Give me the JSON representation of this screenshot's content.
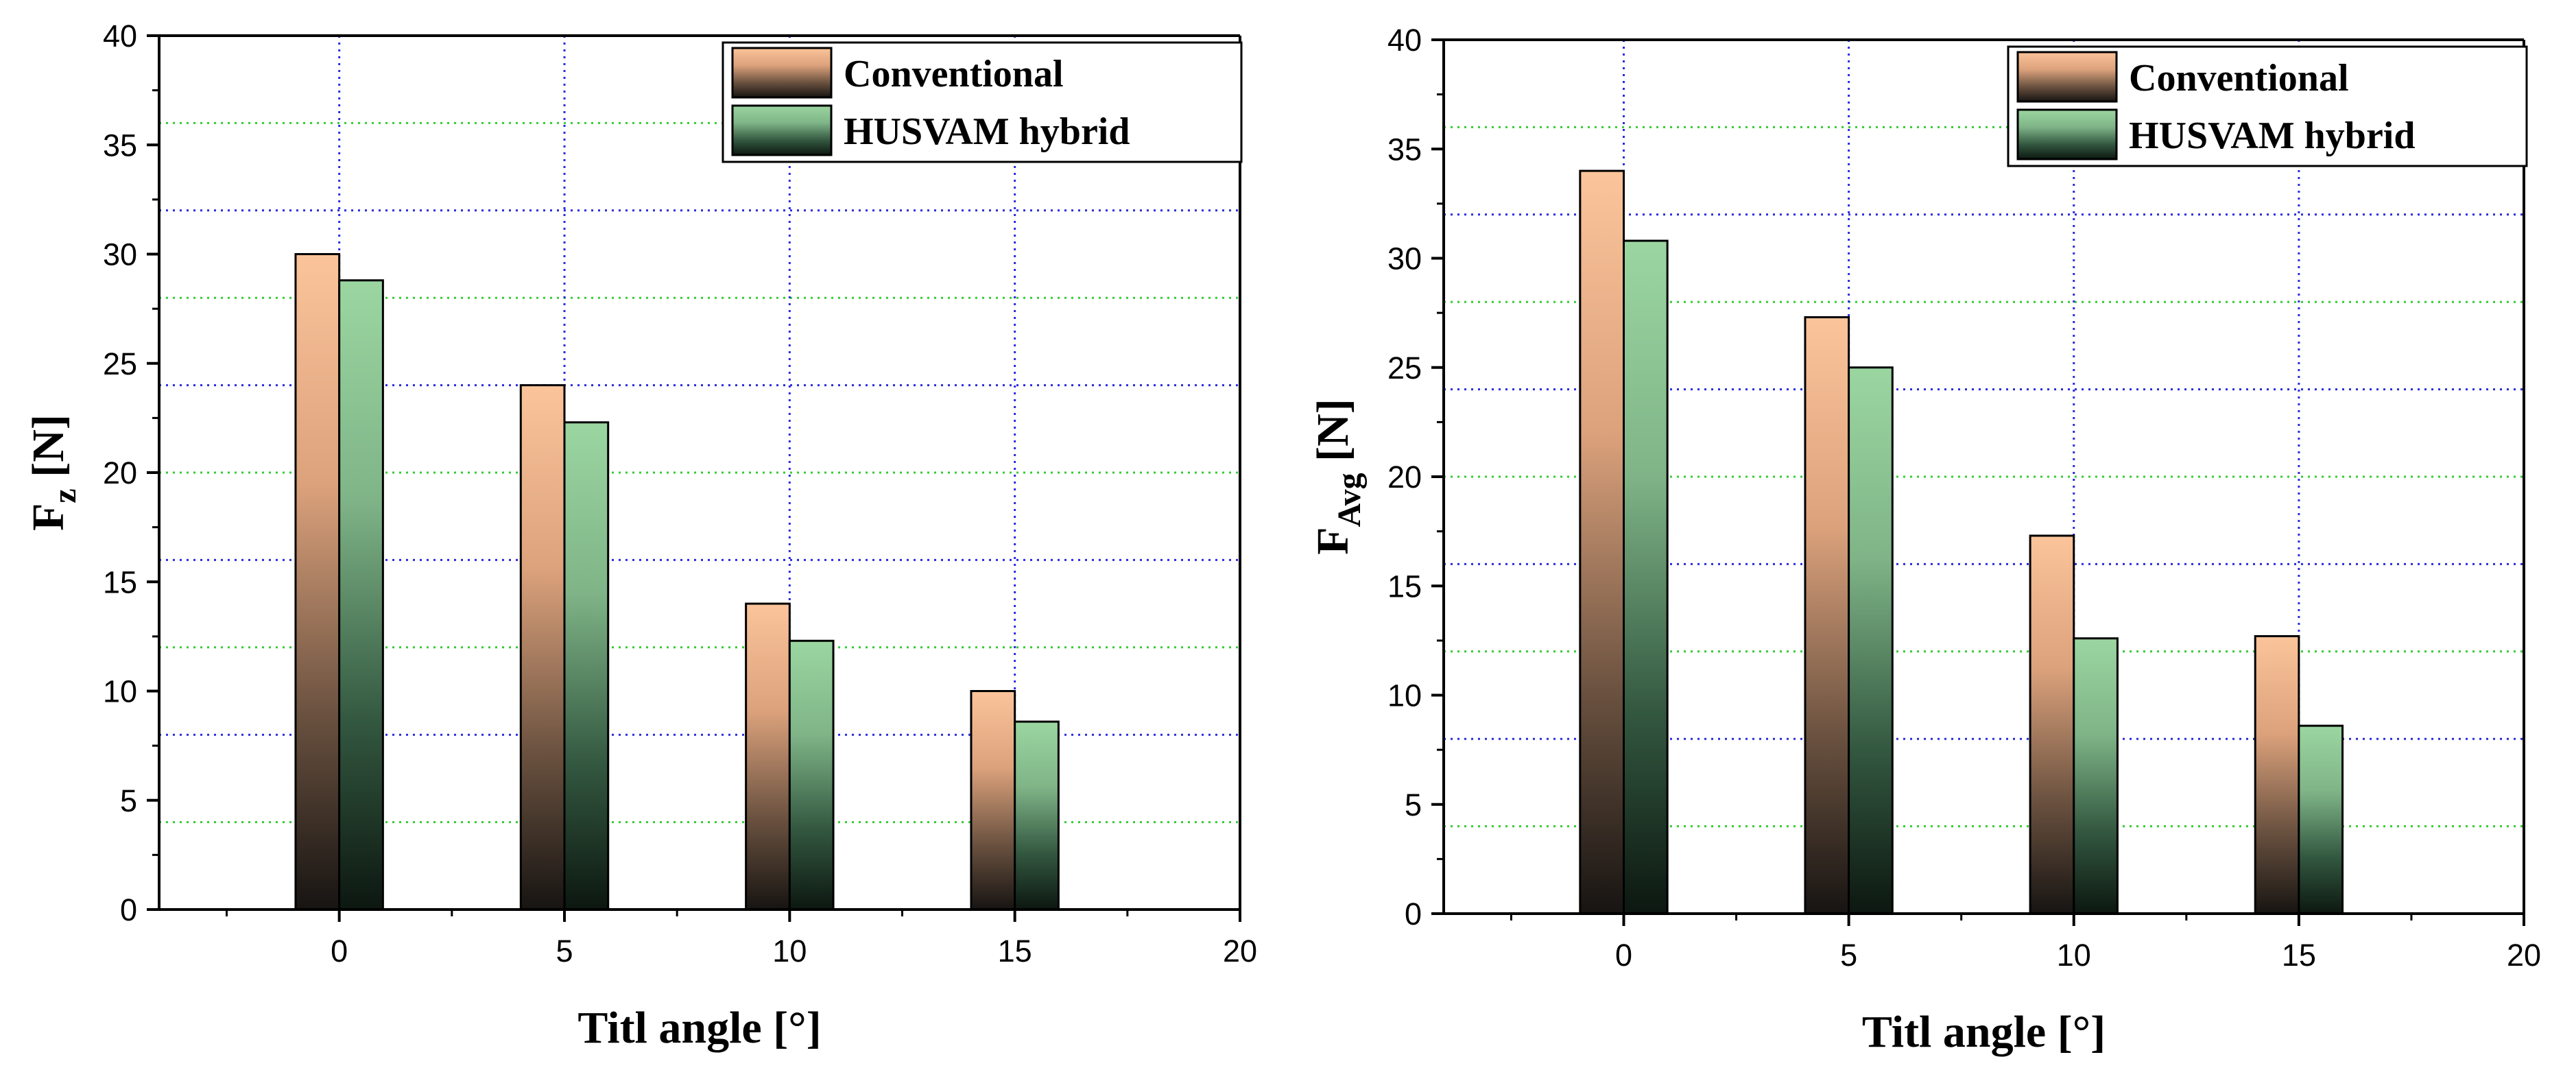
{
  "chart_data": [
    {
      "type": "bar",
      "categories": [
        "0",
        "5",
        "10",
        "15"
      ],
      "x": [
        0,
        5,
        10,
        15
      ],
      "series": [
        {
          "name": "Conventional",
          "values": [
            30.0,
            24.0,
            14.0,
            10.0
          ]
        },
        {
          "name": "HUSVAM hybrid",
          "values": [
            28.8,
            22.3,
            12.3,
            8.6
          ]
        }
      ],
      "xlabel": "Titl angle [°]",
      "ylabel": {
        "main": "F",
        "sub": "z",
        "unit": " [N]"
      },
      "xlim": [
        -4,
        20
      ],
      "ylim": [
        0,
        40
      ],
      "xticks": [
        0,
        5,
        10,
        15,
        20
      ],
      "yticks": [
        0,
        5,
        10,
        15,
        20,
        25,
        30,
        35,
        40
      ],
      "grid": true,
      "legend": "top-right"
    },
    {
      "type": "bar",
      "categories": [
        "0",
        "5",
        "10",
        "15"
      ],
      "x": [
        0,
        5,
        10,
        15
      ],
      "series": [
        {
          "name": "Conventional",
          "values": [
            34.0,
            27.3,
            17.3,
            12.7
          ]
        },
        {
          "name": "HUSVAM hybrid",
          "values": [
            30.8,
            25.0,
            12.6,
            8.6
          ]
        }
      ],
      "xlabel": "Titl angle [°]",
      "ylabel": {
        "main": "F",
        "sub": "Avg",
        "unit": " [N]"
      },
      "xlim": [
        -4,
        20
      ],
      "ylim": [
        0,
        40
      ],
      "xticks": [
        0,
        5,
        10,
        15,
        20
      ],
      "yticks": [
        0,
        5,
        10,
        15,
        20,
        25,
        30,
        35,
        40
      ],
      "grid": true,
      "legend": "top-right"
    }
  ],
  "colors": {
    "conventional_top": "#fbc398",
    "conventional_bottom": "#181512",
    "hybrid_top": "#9ad5a0",
    "hybrid_bottom": "#0e1a12",
    "grid_green": "#33cc33",
    "grid_blue": "#2a2ae0"
  }
}
